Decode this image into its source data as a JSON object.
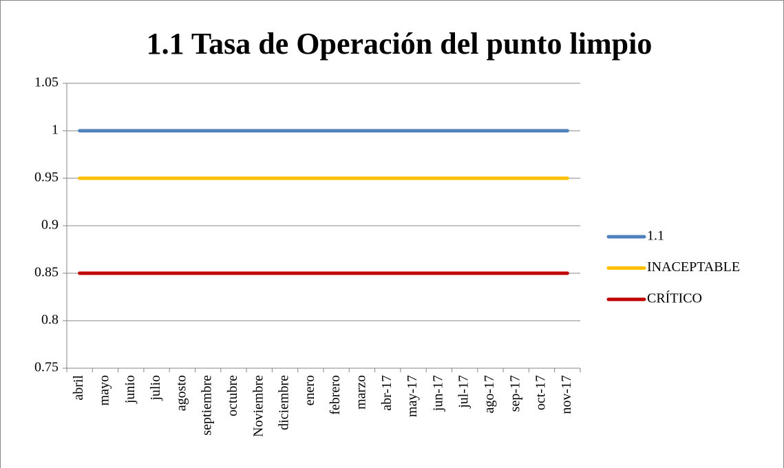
{
  "chart_data": {
    "type": "line",
    "title": "1.1 Tasa de Operación del punto limpio",
    "categories": [
      "abril",
      "mayo",
      "junio",
      "julio",
      "agosto",
      "septiembre",
      "octubre",
      "Noviembre",
      "diciembre",
      "enero",
      "febrero",
      "marzo",
      "abr-17",
      "may-17",
      "jun-17",
      "jul-17",
      "ago-17",
      "sep-17",
      "oct-17",
      "nov-17"
    ],
    "series": [
      {
        "name": "1.1",
        "color": "#4f81bd",
        "values": [
          1,
          1,
          1,
          1,
          1,
          1,
          1,
          1,
          1,
          1,
          1,
          1,
          1,
          1,
          1,
          1,
          1,
          1,
          1,
          1
        ]
      },
      {
        "name": "INACEPTABLE",
        "color": "#ffc000",
        "values": [
          0.95,
          0.95,
          0.95,
          0.95,
          0.95,
          0.95,
          0.95,
          0.95,
          0.95,
          0.95,
          0.95,
          0.95,
          0.95,
          0.95,
          0.95,
          0.95,
          0.95,
          0.95,
          0.95,
          0.95
        ]
      },
      {
        "name": "CRÍTICO",
        "color": "#c00000",
        "values": [
          0.85,
          0.85,
          0.85,
          0.85,
          0.85,
          0.85,
          0.85,
          0.85,
          0.85,
          0.85,
          0.85,
          0.85,
          0.85,
          0.85,
          0.85,
          0.85,
          0.85,
          0.85,
          0.85,
          0.85
        ]
      }
    ],
    "ylim": [
      0.75,
      1.05
    ],
    "yticks": [
      0.75,
      0.8,
      0.85,
      0.9,
      0.95,
      1,
      1.05
    ],
    "grid": true,
    "legend": "right"
  }
}
